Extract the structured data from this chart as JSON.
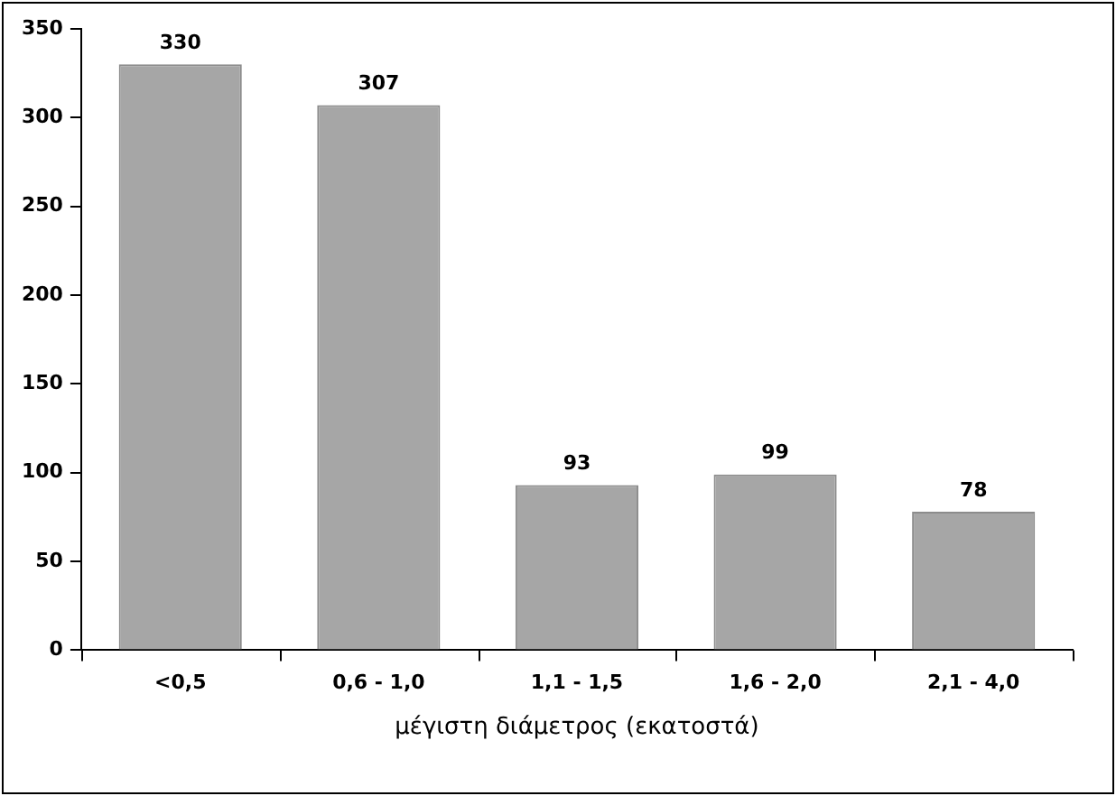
{
  "chart_data": {
    "type": "bar",
    "xlabel": "μέγιστη διάμετρος (εκατοστά)",
    "categories": [
      "<0,5",
      "0,6 - 1,0",
      "1,1 - 1,5",
      "1,6 - 2,0",
      "2,1 - 4,0"
    ],
    "values": [
      330,
      307,
      93,
      99,
      78
    ],
    "color": "#a6a6a6",
    "ylim": [
      0,
      350
    ],
    "yticks": [
      0,
      50,
      100,
      150,
      200,
      250,
      300,
      350
    ],
    "grid": false,
    "data_labels": true
  }
}
